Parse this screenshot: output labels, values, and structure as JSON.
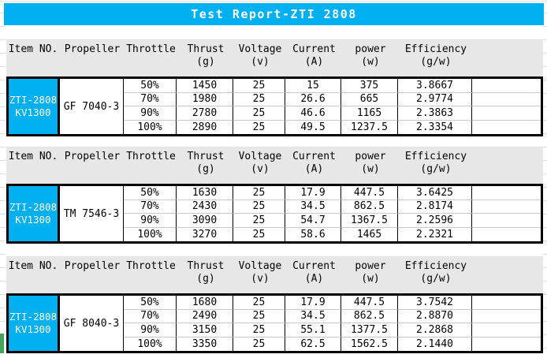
{
  "title": "Test Report-ZTI 2808",
  "colors": {
    "accent": "#00B0F0",
    "header_bg": "#E7E7E7",
    "border": "#000000",
    "row_separator": "#C9C9C9",
    "green_mark": "#3EA758"
  },
  "header": {
    "columns": [
      {
        "label": "Item NO.",
        "unit": ""
      },
      {
        "label": "Propeller",
        "unit": ""
      },
      {
        "label": "Throttle",
        "unit": ""
      },
      {
        "label": "Thrust",
        "unit": "(g)"
      },
      {
        "label": "Voltage",
        "unit": "(v)"
      },
      {
        "label": "Current",
        "unit": "(A)"
      },
      {
        "label": "power",
        "unit": "(w)"
      },
      {
        "label": "Efficiency",
        "unit": "(g/w)"
      },
      {
        "label": "",
        "unit": ""
      }
    ]
  },
  "sections": [
    {
      "item_line1": "ZTI-2808",
      "item_line2": "KV1300",
      "propeller": "GF 7040-3",
      "rows": [
        {
          "throttle": "50%",
          "thrust": "1450",
          "voltage": "25",
          "current": "15",
          "power": "375",
          "efficiency": "3.8667"
        },
        {
          "throttle": "70%",
          "thrust": "1980",
          "voltage": "25",
          "current": "26.6",
          "power": "665",
          "efficiency": "2.9774"
        },
        {
          "throttle": "90%",
          "thrust": "2780",
          "voltage": "25",
          "current": "46.6",
          "power": "1165",
          "efficiency": "2.3863"
        },
        {
          "throttle": "100%",
          "thrust": "2890",
          "voltage": "25",
          "current": "49.5",
          "power": "1237.5",
          "efficiency": "2.3354"
        }
      ]
    },
    {
      "item_line1": "ZTI-2808",
      "item_line2": "KV1300",
      "propeller": "TM 7546-3",
      "rows": [
        {
          "throttle": "50%",
          "thrust": "1630",
          "voltage": "25",
          "current": "17.9",
          "power": "447.5",
          "efficiency": "3.6425"
        },
        {
          "throttle": "70%",
          "thrust": "2430",
          "voltage": "25",
          "current": "34.5",
          "power": "862.5",
          "efficiency": "2.8174"
        },
        {
          "throttle": "90%",
          "thrust": "3090",
          "voltage": "25",
          "current": "54.7",
          "power": "1367.5",
          "efficiency": "2.2596"
        },
        {
          "throttle": "100%",
          "thrust": "3270",
          "voltage": "25",
          "current": "58.6",
          "power": "1465",
          "efficiency": "2.2321"
        }
      ]
    },
    {
      "item_line1": "ZTI-2808",
      "item_line2": "KV1300",
      "propeller": "GF 8040-3",
      "rows": [
        {
          "throttle": "50%",
          "thrust": "1680",
          "voltage": "25",
          "current": "17.9",
          "power": "447.5",
          "efficiency": "3.7542"
        },
        {
          "throttle": "70%",
          "thrust": "2490",
          "voltage": "25",
          "current": "34.5",
          "power": "862.5",
          "efficiency": "2.8870"
        },
        {
          "throttle": "90%",
          "thrust": "3150",
          "voltage": "25",
          "current": "55.1",
          "power": "1377.5",
          "efficiency": "2.2868"
        },
        {
          "throttle": "100%",
          "thrust": "3350",
          "voltage": "25",
          "current": "62.5",
          "power": "1562.5",
          "efficiency": "2.1440"
        }
      ]
    }
  ]
}
